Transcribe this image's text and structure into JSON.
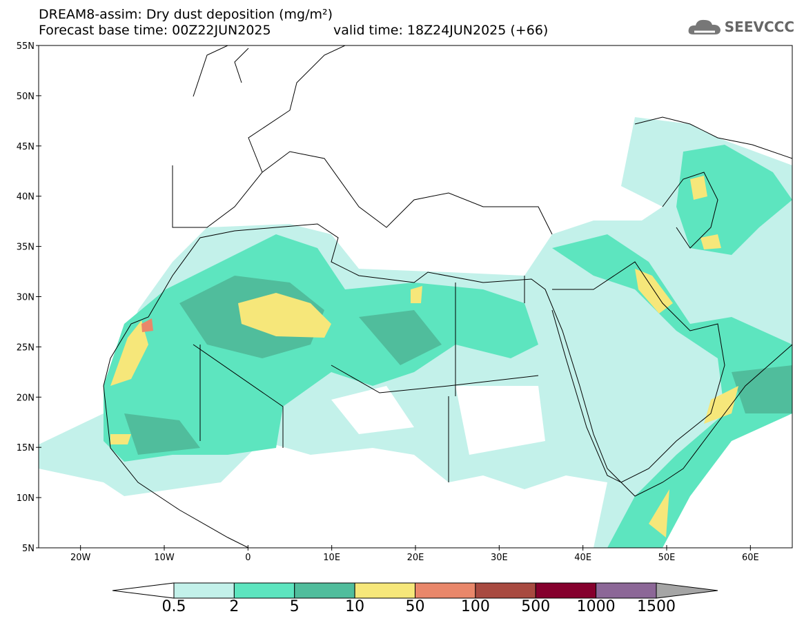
{
  "title": {
    "line1": "DREAM8-assim: Dry dust deposition (mg/m²)",
    "base": "Forecast base time: 00Z22JUN2025",
    "valid": "valid time: 18Z24JUN2025 (+66)"
  },
  "logo": {
    "text": "SEEVCCC",
    "icon": "cloud-icon"
  },
  "axes": {
    "lat": [
      "55N",
      "50N",
      "45N",
      "40N",
      "35N",
      "30N",
      "25N",
      "20N",
      "15N",
      "10N",
      "5N"
    ],
    "lon": [
      "20W",
      "10W",
      "0",
      "10E",
      "20E",
      "30E",
      "40E",
      "50E",
      "60E"
    ]
  },
  "colorbar": {
    "labels": [
      "0.5",
      "2",
      "5",
      "10",
      "50",
      "100",
      "500",
      "1000",
      "1500"
    ],
    "colors": [
      "#c3f1ea",
      "#5de5bf",
      "#50bd9c",
      "#f6e77a",
      "#e9876a",
      "#a84a40",
      "#85002d",
      "#8c6797"
    ],
    "over_color": "#a5a5a5"
  }
}
